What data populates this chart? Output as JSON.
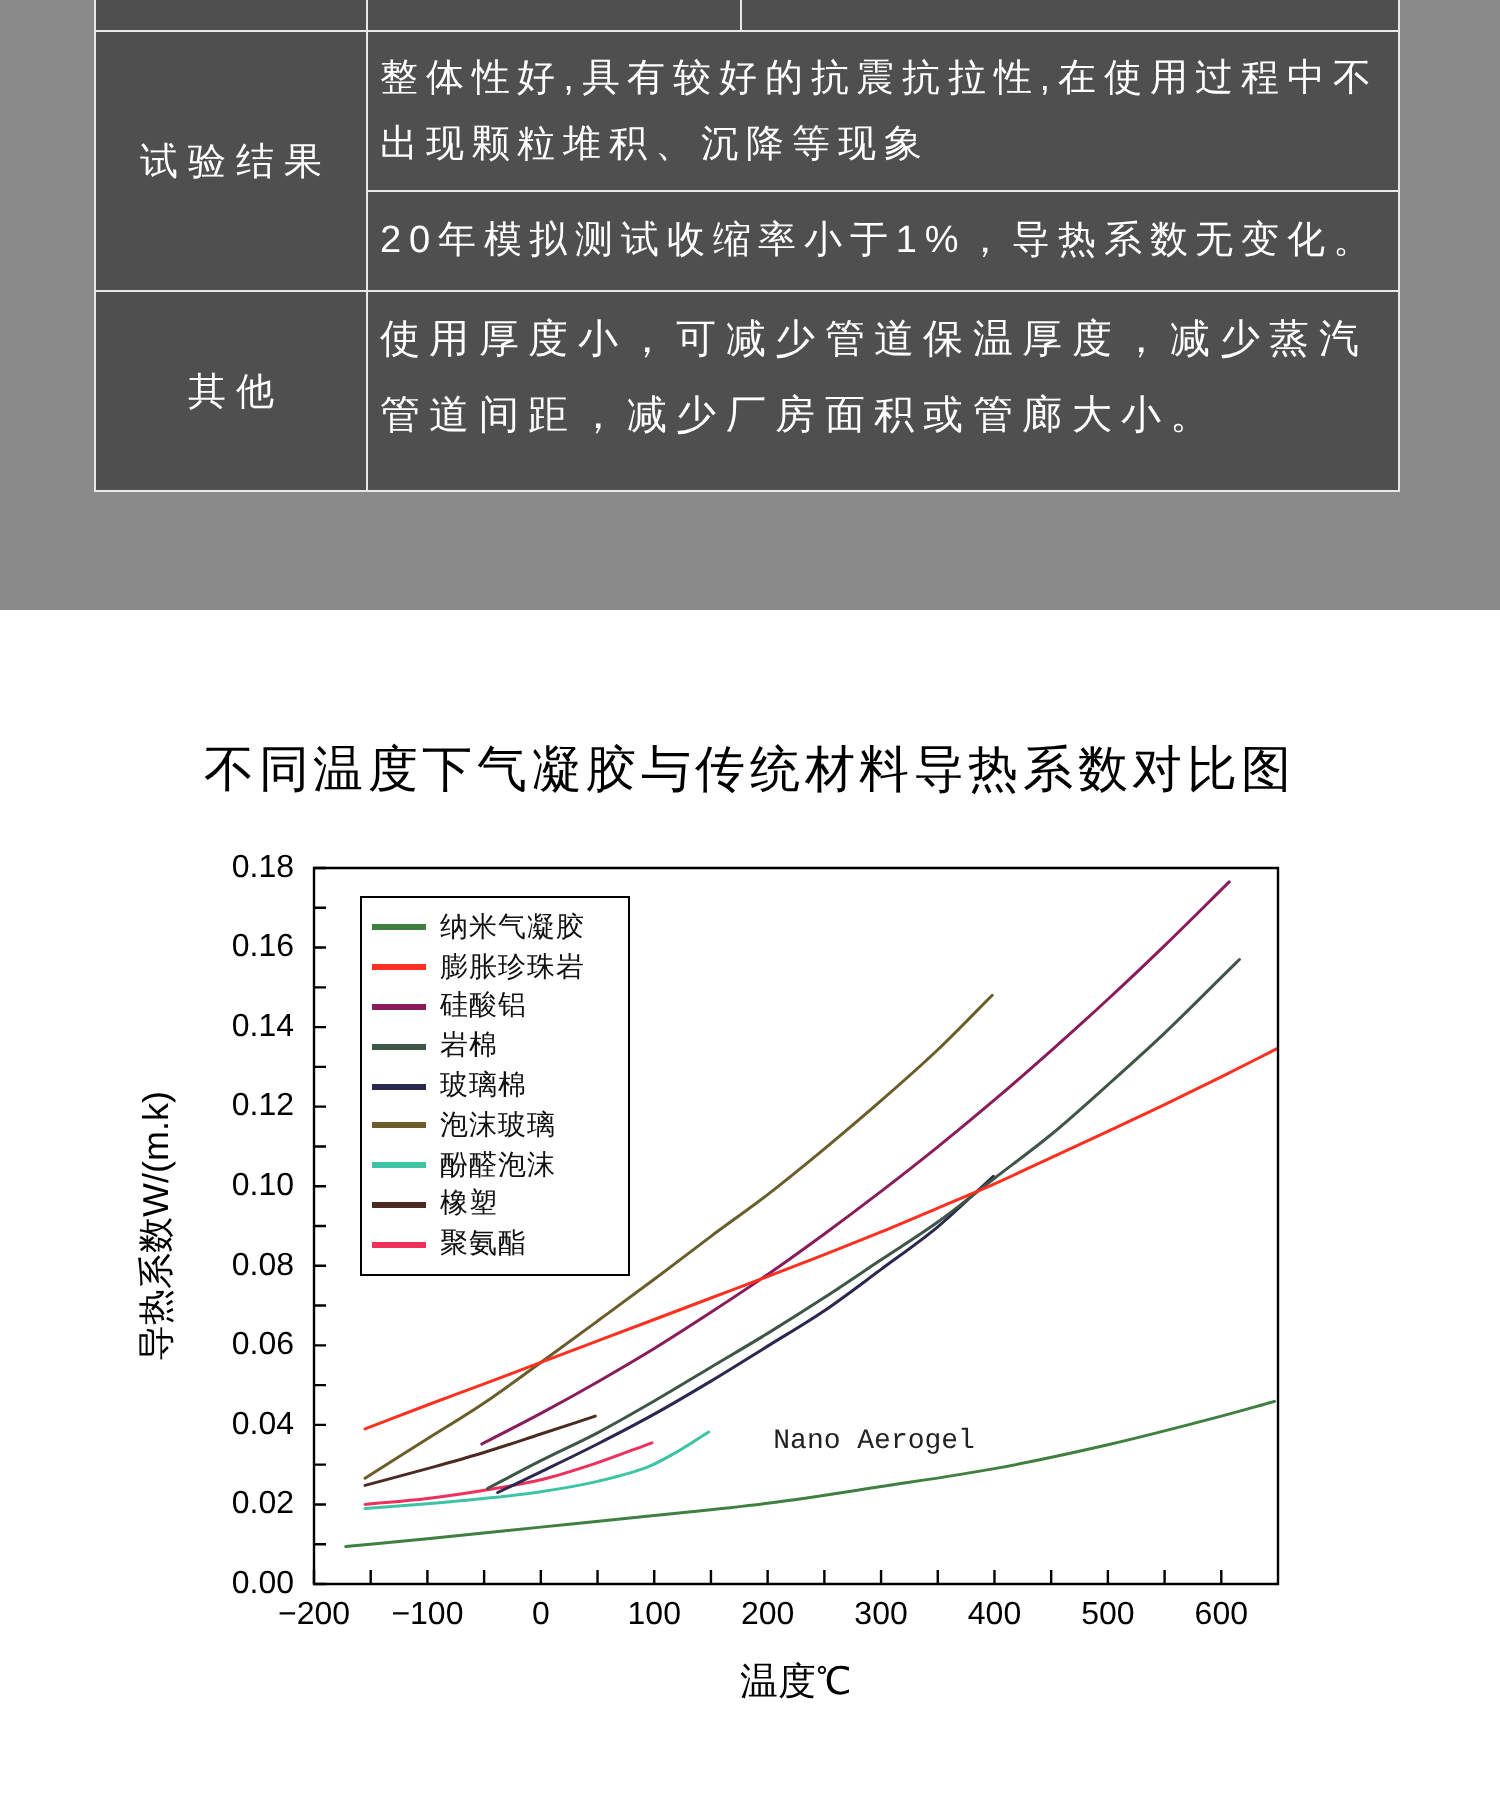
{
  "chart_data": [
    {
      "type": "other",
      "annotations": [
        "试验结果",
        "整体性好,具有较好的抗震抗拉性,在使用过程中不出现颗粒堆积、沉降等现象",
        "20年模拟测试收缩率小于1%，导热系数无变化。",
        "其他",
        "使用厚度小，可减少管道保温厚度，减少蒸汽管道间距，减少厂房面积或管廊大小。"
      ]
    },
    {
      "type": "line",
      "title": "不同温度下气凝胶与传统材料导热系数对比图",
      "xlabel": "温度℃",
      "ylabel": "导热系数W/(m.k)",
      "xlim": [
        -200,
        650
      ],
      "ylim": [
        0,
        0.18
      ],
      "xticks": [
        {
          "value": -200,
          "label": "−200"
        },
        {
          "value": -150,
          "label": null
        },
        {
          "value": -100,
          "label": "−100"
        },
        {
          "value": -50,
          "label": null
        },
        0,
        {
          "value": 50,
          "label": null
        },
        100,
        {
          "value": 150,
          "label": null
        },
        200,
        {
          "value": 250,
          "label": null
        },
        300,
        {
          "value": 350,
          "label": null
        },
        400,
        {
          "value": 450,
          "label": null
        },
        500,
        {
          "value": 550,
          "label": null
        },
        600
      ],
      "yticks": [
        {
          "value": 0,
          "label": "0.00"
        },
        {
          "value": 0.01,
          "label": null
        },
        0.02,
        {
          "value": 0.03,
          "label": null
        },
        0.04,
        {
          "value": 0.05,
          "label": null
        },
        0.06,
        {
          "value": 0.07,
          "label": null
        },
        0.08,
        {
          "value": 0.09,
          "label": null
        },
        {
          "value": 0.1,
          "label": "0.10"
        },
        {
          "value": 0.11,
          "label": null
        },
        0.12,
        {
          "value": 0.13,
          "label": null
        },
        0.14,
        {
          "value": 0.15,
          "label": null
        },
        0.16,
        {
          "value": 0.17,
          "label": null
        },
        0.18
      ],
      "legend": "top left",
      "marker": "none",
      "annotations": [
        "Nano Aerogel"
      ],
      "series": [
        {
          "name": "纳米气凝胶",
          "color": "#3f7f3f",
          "x": [
            -172,
            -100,
            0,
            100,
            200,
            300,
            400,
            500,
            600,
            647
          ],
          "values": [
            0.0094,
            0.0114,
            0.0143,
            0.0172,
            0.0203,
            0.0245,
            0.029,
            0.035,
            0.0422,
            0.0459
          ]
        },
        {
          "name": "膨胀珍珠岩",
          "color": "#ff3020",
          "x": [
            -155,
            -100,
            -50,
            0,
            50,
            100,
            150,
            200,
            250,
            300,
            350,
            400,
            450,
            500,
            550,
            600,
            650
          ],
          "values": [
            0.039,
            0.045,
            0.0503,
            0.0557,
            0.0611,
            0.0665,
            0.0719,
            0.0773,
            0.0828,
            0.0885,
            0.0945,
            0.1006,
            0.1072,
            0.1138,
            0.1205,
            0.1275,
            0.1347
          ]
        },
        {
          "name": "硅酸铝",
          "color": "#8b1c5c",
          "x": [
            -52,
            0,
            50,
            100,
            150,
            200,
            250,
            300,
            350,
            400,
            450,
            500,
            550,
            607
          ],
          "values": [
            0.0352,
            0.0429,
            0.0508,
            0.0592,
            0.0683,
            0.0778,
            0.088,
            0.0987,
            0.1099,
            0.1217,
            0.1341,
            0.147,
            0.1605,
            0.1765
          ]
        },
        {
          "name": "岩棉",
          "color": "#3d5646",
          "x": [
            -47,
            0,
            50,
            100,
            150,
            200,
            250,
            300,
            350,
            400,
            450,
            500,
            550,
            600,
            616
          ],
          "values": [
            0.024,
            0.031,
            0.038,
            0.046,
            0.0545,
            0.063,
            0.072,
            0.0815,
            0.091,
            0.102,
            0.113,
            0.1255,
            0.1385,
            0.1525,
            0.157
          ]
        },
        {
          "name": "玻璃棉",
          "color": "#2a2850",
          "x": [
            -38,
            0,
            50,
            100,
            150,
            200,
            250,
            300,
            350,
            380,
            399
          ],
          "values": [
            0.023,
            0.0282,
            0.0352,
            0.0427,
            0.051,
            0.0598,
            0.0687,
            0.0791,
            0.0898,
            0.0975,
            0.1025
          ]
        },
        {
          "name": "泡沫玻璃",
          "color": "#6b5d2a",
          "x": [
            -155,
            -100,
            -50,
            0,
            50,
            100,
            150,
            200,
            250,
            300,
            350,
            398
          ],
          "values": [
            0.0266,
            0.0365,
            0.0455,
            0.0557,
            0.0661,
            0.0766,
            0.0874,
            0.0979,
            0.1094,
            0.1215,
            0.1343,
            0.148
          ]
        },
        {
          "name": "酚醛泡沫",
          "color": "#3cc4a4",
          "x": [
            -155,
            -100,
            -50,
            0,
            50,
            95,
            120,
            148
          ],
          "values": [
            0.019,
            0.0202,
            0.0215,
            0.0232,
            0.0258,
            0.0295,
            0.0332,
            0.0382
          ]
        },
        {
          "name": "橡塑",
          "color": "#4b2a22",
          "x": [
            -155,
            -100,
            -53,
            0,
            48
          ],
          "values": [
            0.0248,
            0.029,
            0.0328,
            0.0377,
            0.0422
          ]
        },
        {
          "name": "聚氨酯",
          "color": "#f0305a",
          "x": [
            -155,
            -100,
            -47,
            0,
            47,
            98
          ],
          "values": [
            0.02,
            0.0215,
            0.0237,
            0.0262,
            0.0302,
            0.0355
          ]
        }
      ]
    }
  ]
}
